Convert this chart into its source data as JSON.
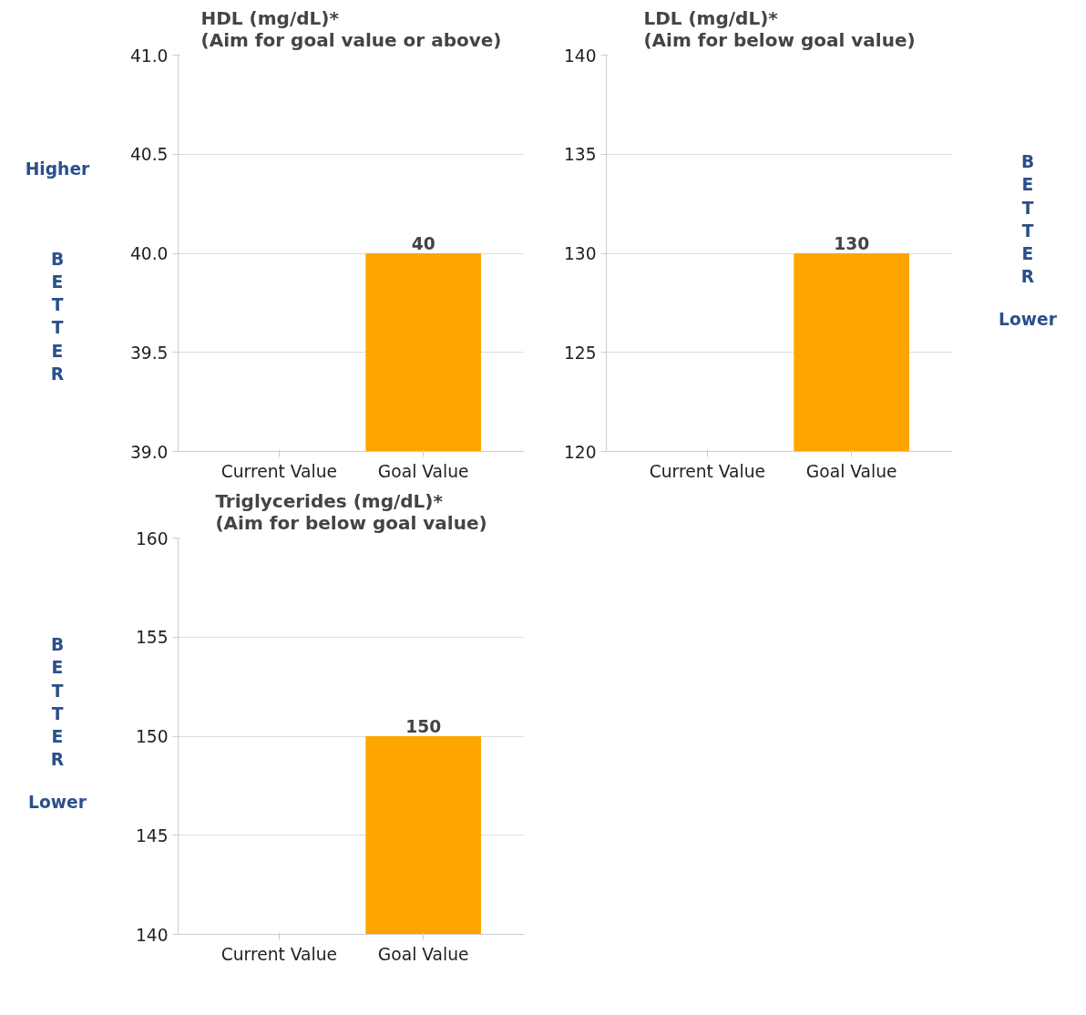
{
  "chart_data": [
    {
      "type": "bar",
      "title": "HDL (mg/dL)*\n(Aim for goal value or above)",
      "categories": [
        "Current Value",
        "Goal Value"
      ],
      "values": [
        null,
        40
      ],
      "color": "#ffa500",
      "data_labels": true,
      "ylim": [
        39,
        41
      ],
      "yticks": [
        {
          "value": 39,
          "label": "39.0"
        },
        {
          "value": 39.5,
          "label": "39.5"
        },
        {
          "value": 40,
          "label": "40.0"
        },
        {
          "value": 40.5,
          "label": "40.5"
        },
        {
          "value": 41,
          "label": "41.0"
        }
      ],
      "grid": "y",
      "annotations": [
        "Higher",
        "BETTER"
      ]
    },
    {
      "type": "bar",
      "title": "LDL (mg/dL)*\n(Aim for below goal value)",
      "categories": [
        "Current Value",
        "Goal Value"
      ],
      "values": [
        null,
        130
      ],
      "color": "#ffa500",
      "data_labels": true,
      "ylim": [
        120,
        140
      ],
      "yticks": [
        120,
        125,
        130,
        135,
        140
      ],
      "grid": "y",
      "annotations": [
        "BETTER",
        "Lower"
      ]
    },
    {
      "type": "bar",
      "title": "Triglycerides (mg/dL)*\n(Aim for below goal value)",
      "categories": [
        "Current Value",
        "Goal Value"
      ],
      "values": [
        null,
        150
      ],
      "color": "#ffa500",
      "data_labels": true,
      "ylim": [
        140,
        160
      ],
      "yticks": [
        140,
        145,
        150,
        155,
        160
      ],
      "grid": "y",
      "annotations": [
        "BETTER",
        "Lower"
      ]
    }
  ]
}
